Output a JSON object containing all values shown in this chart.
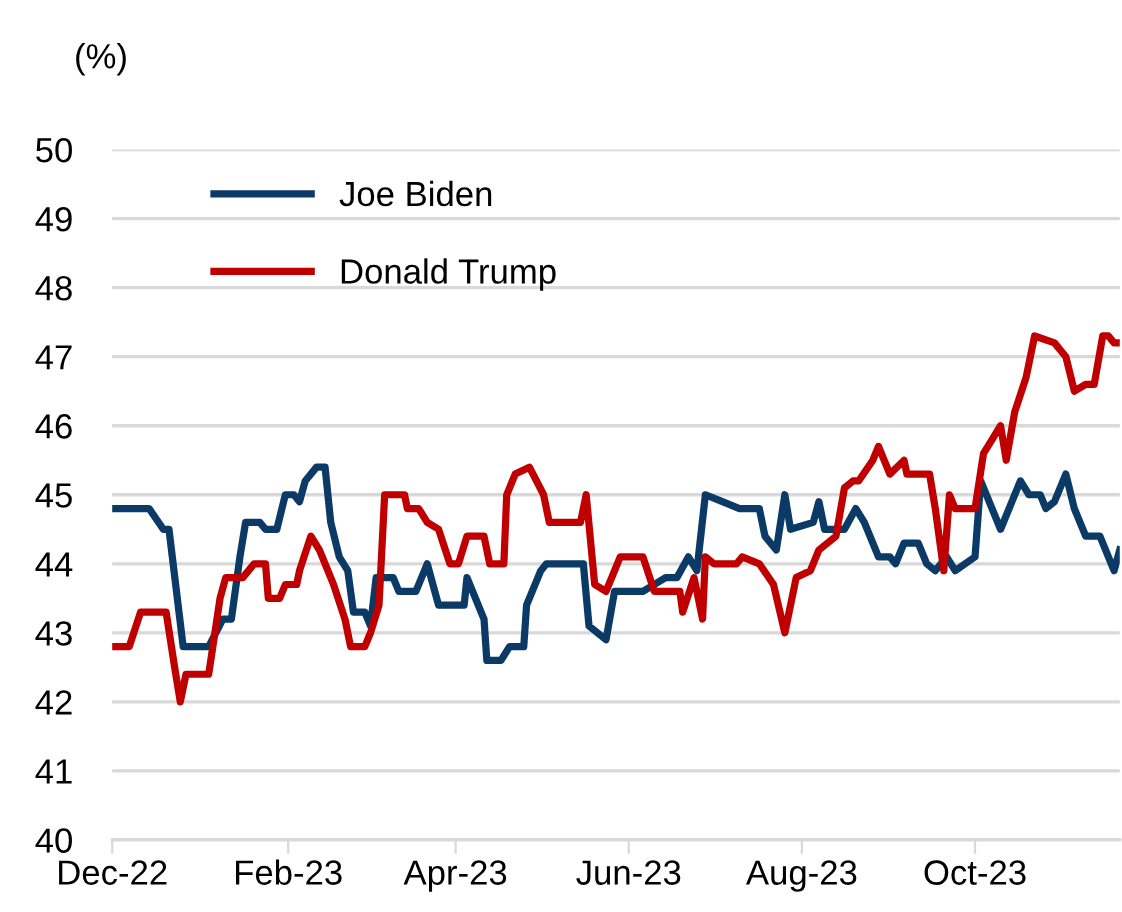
{
  "chart_data": {
    "type": "line",
    "ylabel": "(%)",
    "xlim": [
      "2022-12-01",
      "2023-11-21"
    ],
    "xticks": [
      {
        "value": "2022-12-01",
        "label": "Dec-22"
      },
      {
        "value": "2023-02-01",
        "label": "Feb-23"
      },
      {
        "value": "2023-04-01",
        "label": "Apr-23"
      },
      {
        "value": "2023-06-01",
        "label": "Jun-23"
      },
      {
        "value": "2023-08-01",
        "label": "Aug-23"
      },
      {
        "value": "2023-10-01",
        "label": "Oct-23"
      }
    ],
    "ylim": [
      40,
      50
    ],
    "yticks": [
      40,
      41,
      42,
      43,
      44,
      45,
      46,
      47,
      48,
      49,
      50
    ],
    "grid": "y",
    "legend": "top left",
    "marker": "none",
    "line_style": "solid",
    "series": [
      {
        "name": "Joe Biden",
        "color": "#0b3a66",
        "x": [
          "2022-12-01",
          "2022-12-14",
          "2022-12-19",
          "2022-12-21",
          "2022-12-26",
          "2023-01-04",
          "2023-01-09",
          "2023-01-12",
          "2023-01-15",
          "2023-01-17",
          "2023-01-22",
          "2023-01-24",
          "2023-01-28",
          "2023-01-31",
          "2023-02-03",
          "2023-02-05",
          "2023-02-07",
          "2023-02-11",
          "2023-02-14",
          "2023-02-16",
          "2023-02-19",
          "2023-02-22",
          "2023-02-24",
          "2023-02-28",
          "2023-03-02",
          "2023-03-04",
          "2023-03-10",
          "2023-03-12",
          "2023-03-18",
          "2023-03-22",
          "2023-03-26",
          "2023-04-04",
          "2023-04-05",
          "2023-04-11",
          "2023-04-12",
          "2023-04-17",
          "2023-04-20",
          "2023-04-25",
          "2023-04-26",
          "2023-05-01",
          "2023-05-03",
          "2023-05-16",
          "2023-05-18",
          "2023-05-24",
          "2023-05-27",
          "2023-06-06",
          "2023-06-10",
          "2023-06-14",
          "2023-06-18",
          "2023-06-22",
          "2023-06-25",
          "2023-06-28",
          "2023-07-04",
          "2023-07-10",
          "2023-07-12",
          "2023-07-17",
          "2023-07-19",
          "2023-07-23",
          "2023-07-26",
          "2023-07-28",
          "2023-08-05",
          "2023-08-07",
          "2023-08-09",
          "2023-08-16",
          "2023-08-20",
          "2023-08-23",
          "2023-08-28",
          "2023-09-01",
          "2023-09-03",
          "2023-09-06",
          "2023-09-11",
          "2023-09-14",
          "2023-09-17",
          "2023-09-21",
          "2023-09-24",
          "2023-10-01",
          "2023-10-03",
          "2023-10-10",
          "2023-10-13",
          "2023-10-17",
          "2023-10-20",
          "2023-10-24",
          "2023-10-26",
          "2023-10-29",
          "2023-11-02",
          "2023-11-05",
          "2023-11-09",
          "2023-11-14",
          "2023-11-19",
          "2023-11-21"
        ],
        "values": [
          44.8,
          44.8,
          44.5,
          44.5,
          42.8,
          42.8,
          43.2,
          43.2,
          44.1,
          44.6,
          44.6,
          44.5,
          44.5,
          45.0,
          45.0,
          44.9,
          45.2,
          45.4,
          45.4,
          44.6,
          44.1,
          43.9,
          43.3,
          43.3,
          43.1,
          43.8,
          43.8,
          43.6,
          43.6,
          44.0,
          43.4,
          43.4,
          43.8,
          43.2,
          42.6,
          42.6,
          42.8,
          42.8,
          43.4,
          43.9,
          44.0,
          44.0,
          43.1,
          42.9,
          43.6,
          43.6,
          43.7,
          43.8,
          43.8,
          44.1,
          43.9,
          45.0,
          44.9,
          44.8,
          44.8,
          44.8,
          44.4,
          44.2,
          45.0,
          44.5,
          44.6,
          44.9,
          44.5,
          44.5,
          44.8,
          44.6,
          44.1,
          44.1,
          44.0,
          44.3,
          44.3,
          44.0,
          43.9,
          44.1,
          43.9,
          44.1,
          45.2,
          44.5,
          44.8,
          45.2,
          45.0,
          45.0,
          44.8,
          44.9,
          45.3,
          44.8,
          44.4,
          44.4,
          43.9,
          44.2
        ]
      },
      {
        "name": "Donald Trump",
        "color": "#c00000",
        "x": [
          "2022-12-01",
          "2022-12-07",
          "2022-12-11",
          "2022-12-20",
          "2022-12-23",
          "2022-12-25",
          "2022-12-27",
          "2023-01-04",
          "2023-01-08",
          "2023-01-10",
          "2023-01-16",
          "2023-01-20",
          "2023-01-24",
          "2023-01-25",
          "2023-01-29",
          "2023-01-31",
          "2023-02-04",
          "2023-02-05",
          "2023-02-09",
          "2023-02-12",
          "2023-02-17",
          "2023-02-21",
          "2023-02-23",
          "2023-02-28",
          "2023-03-02",
          "2023-03-05",
          "2023-03-07",
          "2023-03-14",
          "2023-03-15",
          "2023-03-19",
          "2023-03-22",
          "2023-03-26",
          "2023-03-30",
          "2023-04-02",
          "2023-04-05",
          "2023-04-11",
          "2023-04-13",
          "2023-04-18",
          "2023-04-19",
          "2023-04-22",
          "2023-04-27",
          "2023-05-02",
          "2023-05-04",
          "2023-05-15",
          "2023-05-17",
          "2023-05-20",
          "2023-05-24",
          "2023-05-29",
          "2023-06-06",
          "2023-06-10",
          "2023-06-19",
          "2023-06-20",
          "2023-06-24",
          "2023-06-27",
          "2023-06-28",
          "2023-07-01",
          "2023-07-09",
          "2023-07-11",
          "2023-07-17",
          "2023-07-22",
          "2023-07-26",
          "2023-07-30",
          "2023-08-04",
          "2023-08-07",
          "2023-08-13",
          "2023-08-16",
          "2023-08-19",
          "2023-08-21",
          "2023-08-26",
          "2023-08-28",
          "2023-09-01",
          "2023-09-06",
          "2023-09-07",
          "2023-09-11",
          "2023-09-15",
          "2023-09-17",
          "2023-09-20",
          "2023-09-22",
          "2023-09-24",
          "2023-10-01",
          "2023-10-04",
          "2023-10-07",
          "2023-10-10",
          "2023-10-12",
          "2023-10-15",
          "2023-10-19",
          "2023-10-22",
          "2023-10-29",
          "2023-11-02",
          "2023-11-05",
          "2023-11-09",
          "2023-11-12",
          "2023-11-15",
          "2023-11-17",
          "2023-11-19",
          "2023-11-21"
        ],
        "values": [
          42.8,
          42.8,
          43.3,
          43.3,
          42.5,
          42.0,
          42.4,
          42.4,
          43.5,
          43.8,
          43.8,
          44.0,
          44.0,
          43.5,
          43.5,
          43.7,
          43.7,
          43.9,
          44.4,
          44.2,
          43.7,
          43.2,
          42.8,
          42.8,
          43.0,
          43.4,
          45.0,
          45.0,
          44.8,
          44.8,
          44.6,
          44.5,
          44.0,
          44.0,
          44.4,
          44.4,
          44.0,
          44.0,
          45.0,
          45.3,
          45.4,
          45.0,
          44.6,
          44.6,
          45.0,
          43.7,
          43.6,
          44.1,
          44.1,
          43.6,
          43.6,
          43.3,
          43.8,
          43.2,
          44.1,
          44.0,
          44.0,
          44.1,
          44.0,
          43.7,
          43.0,
          43.8,
          43.9,
          44.2,
          44.4,
          45.1,
          45.2,
          45.2,
          45.5,
          45.7,
          45.3,
          45.5,
          45.3,
          45.3,
          45.3,
          44.8,
          43.9,
          45.0,
          44.8,
          44.8,
          45.6,
          45.8,
          46.0,
          45.5,
          46.2,
          46.7,
          47.3,
          47.2,
          47.0,
          46.5,
          46.6,
          46.6,
          47.3,
          47.3,
          47.2,
          47.2
        ]
      }
    ]
  }
}
